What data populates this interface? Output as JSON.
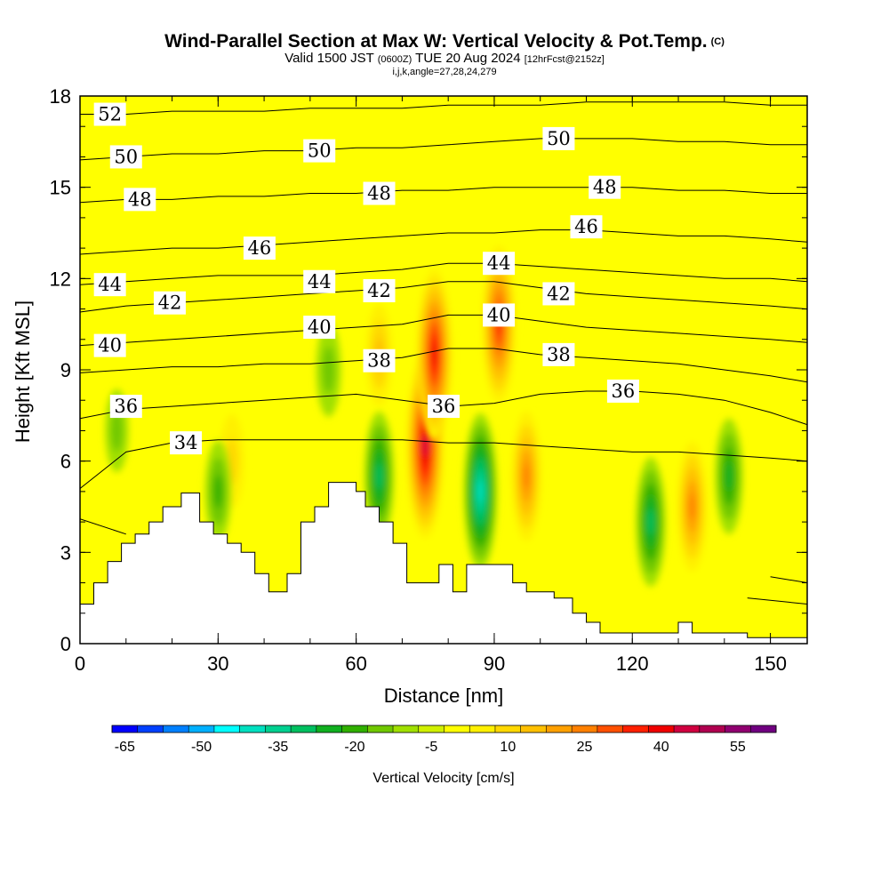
{
  "header": {
    "title": "Wind-Parallel Section at Max W: Vertical Velocity & Pot.Temp.",
    "title_tag": "(C)",
    "valid_prefix": "Valid 1500 JST",
    "valid_utc": "(0600Z)",
    "valid_date": "TUE 20 Aug 2024",
    "forecast": "[12hrFcst@2152z]",
    "grid_info": "i,j,k,angle=27,28,24,279"
  },
  "chart_data": {
    "type": "heatmap",
    "xlabel": "Distance [nm]",
    "ylabel": "Height [Kft MSL]",
    "xlim": [
      0,
      158
    ],
    "ylim": [
      0,
      18
    ],
    "x_ticks": [
      0,
      30,
      60,
      90,
      120,
      150
    ],
    "y_ticks": [
      0,
      3,
      6,
      9,
      12,
      15,
      18
    ],
    "colorbar": {
      "label": "Vertical Velocity [cm/s]",
      "tick_labels": [
        "-65",
        "-50",
        "-35",
        "-20",
        "-5",
        "10",
        "25",
        "40",
        "55"
      ],
      "levels_start": -65,
      "level_step": 5,
      "colors": [
        "#0000ff",
        "#0040ff",
        "#0080ff",
        "#00b0ff",
        "#00ffff",
        "#00e0c0",
        "#00d090",
        "#00c060",
        "#10b020",
        "#30b000",
        "#70c800",
        "#a0e000",
        "#d0f000",
        "#ffff00",
        "#fff000",
        "#ffd800",
        "#ffc000",
        "#ffa000",
        "#ff8000",
        "#ff5000",
        "#ff2000",
        "#f00000",
        "#d00040",
        "#b00050",
        "#900070",
        "#700080"
      ]
    },
    "background_color": "#ffff00",
    "updrafts_cm_s": [
      {
        "x": 75,
        "z": 6.5,
        "w": 45
      },
      {
        "x": 77,
        "z": 9.5,
        "w": 40
      },
      {
        "x": 91,
        "z": 10.5,
        "w": 35
      },
      {
        "x": 97,
        "z": 5.5,
        "w": 25
      },
      {
        "x": 133,
        "z": 4.5,
        "w": 25
      },
      {
        "x": 65,
        "z": 9.5,
        "w": 15
      },
      {
        "x": 33,
        "z": 6,
        "w": 12
      }
    ],
    "downdrafts_cm_s": [
      {
        "x": 87,
        "z": 5,
        "w": -35
      },
      {
        "x": 65,
        "z": 5.5,
        "w": -25
      },
      {
        "x": 124,
        "z": 4,
        "w": -25
      },
      {
        "x": 141,
        "z": 5.5,
        "w": -20
      },
      {
        "x": 30,
        "z": 5,
        "w": -15
      },
      {
        "x": 54,
        "z": 9,
        "w": -12
      },
      {
        "x": 8,
        "z": 7,
        "w": -8
      }
    ],
    "isentrope_labels": [
      {
        "value": "52",
        "x": 6.5,
        "z": 17.4
      },
      {
        "value": "50",
        "x": 10,
        "z": 16
      },
      {
        "value": "50",
        "x": 52,
        "z": 16.2
      },
      {
        "value": "50",
        "x": 104,
        "z": 16.6
      },
      {
        "value": "48",
        "x": 13,
        "z": 14.6
      },
      {
        "value": "48",
        "x": 65,
        "z": 14.8
      },
      {
        "value": "48",
        "x": 114,
        "z": 15
      },
      {
        "value": "46",
        "x": 39,
        "z": 13
      },
      {
        "value": "46",
        "x": 110,
        "z": 13.7
      },
      {
        "value": "44",
        "x": 6.5,
        "z": 11.8
      },
      {
        "value": "44",
        "x": 52,
        "z": 11.9
      },
      {
        "value": "44",
        "x": 91,
        "z": 12.5
      },
      {
        "value": "42",
        "x": 19.5,
        "z": 11.2
      },
      {
        "value": "42",
        "x": 65,
        "z": 11.6
      },
      {
        "value": "42",
        "x": 104,
        "z": 11.5
      },
      {
        "value": "40",
        "x": 6.5,
        "z": 9.8
      },
      {
        "value": "40",
        "x": 52,
        "z": 10.4
      },
      {
        "value": "40",
        "x": 91,
        "z": 10.8
      },
      {
        "value": "38",
        "x": 65,
        "z": 9.3
      },
      {
        "value": "38",
        "x": 104,
        "z": 9.5
      },
      {
        "value": "36",
        "x": 10,
        "z": 7.8
      },
      {
        "value": "36",
        "x": 79,
        "z": 7.8
      },
      {
        "value": "36",
        "x": 118,
        "z": 8.3
      },
      {
        "value": "34",
        "x": 23,
        "z": 6.6
      }
    ],
    "isentropes": [
      {
        "value": 34,
        "z": [
          5.1,
          6.3,
          6.6,
          6.7,
          6.7,
          6.7,
          6.7,
          6.7,
          6.6,
          6.6,
          6.5,
          6.4,
          6.3,
          6.3,
          6.2,
          6.1,
          6.0
        ]
      },
      {
        "value": 36,
        "z": [
          7.4,
          7.7,
          7.8,
          7.9,
          8.0,
          8.1,
          8.2,
          8.0,
          7.8,
          7.9,
          8.2,
          8.3,
          8.3,
          8.2,
          8.0,
          7.6,
          7.2
        ]
      },
      {
        "value": 38,
        "z": [
          8.9,
          9.0,
          9.1,
          9.1,
          9.2,
          9.2,
          9.3,
          9.4,
          9.7,
          9.7,
          9.5,
          9.4,
          9.3,
          9.2,
          9.0,
          8.8,
          8.6
        ]
      },
      {
        "value": 40,
        "z": [
          9.8,
          9.9,
          10.0,
          10.1,
          10.2,
          10.3,
          10.4,
          10.5,
          10.8,
          10.8,
          10.6,
          10.4,
          10.3,
          10.2,
          10.1,
          10.0,
          9.9
        ]
      },
      {
        "value": 42,
        "z": [
          10.9,
          11.1,
          11.2,
          11.3,
          11.4,
          11.5,
          11.6,
          11.7,
          11.9,
          11.9,
          11.7,
          11.5,
          11.4,
          11.3,
          11.2,
          11.1,
          11.0
        ]
      },
      {
        "value": 44,
        "z": [
          11.8,
          11.9,
          12.0,
          12.1,
          12.1,
          12.1,
          12.2,
          12.3,
          12.5,
          12.5,
          12.4,
          12.3,
          12.2,
          12.1,
          12.0,
          12.0,
          11.9
        ]
      },
      {
        "value": 46,
        "z": [
          12.8,
          12.9,
          13.0,
          13.0,
          13.1,
          13.2,
          13.3,
          13.4,
          13.5,
          13.5,
          13.6,
          13.6,
          13.5,
          13.4,
          13.4,
          13.3,
          13.2
        ]
      },
      {
        "value": 48,
        "z": [
          14.5,
          14.6,
          14.6,
          14.7,
          14.7,
          14.8,
          14.8,
          14.9,
          14.9,
          15.0,
          15.0,
          15.0,
          15.0,
          14.9,
          14.9,
          14.8,
          14.8
        ]
      },
      {
        "value": 50,
        "z": [
          15.9,
          16.0,
          16.1,
          16.1,
          16.2,
          16.2,
          16.3,
          16.3,
          16.4,
          16.5,
          16.6,
          16.6,
          16.6,
          16.5,
          16.5,
          16.4,
          16.4
        ]
      },
      {
        "value": 52,
        "z": [
          17.4,
          17.4,
          17.5,
          17.5,
          17.5,
          17.6,
          17.6,
          17.6,
          17.7,
          17.7,
          17.7,
          17.8,
          17.8,
          17.8,
          17.8,
          17.7,
          17.7
        ]
      }
    ],
    "isentrope_x": [
      0,
      10,
      20,
      30,
      40,
      50,
      60,
      70,
      80,
      90,
      100,
      110,
      120,
      130,
      140,
      150,
      158
    ],
    "terrain": {
      "x": [
        0,
        3,
        3,
        6,
        6,
        9,
        9,
        12,
        12,
        15,
        15,
        18,
        18,
        22,
        22,
        26,
        26,
        29,
        29,
        32,
        32,
        35,
        35,
        38,
        38,
        41,
        41,
        45,
        45,
        48,
        48,
        51,
        51,
        54,
        54,
        60,
        60,
        62,
        62,
        65,
        65,
        68,
        68,
        71,
        71,
        75,
        75,
        78,
        78,
        81,
        81,
        84,
        84,
        87,
        87,
        94,
        94,
        97,
        97,
        103,
        103,
        107,
        107,
        110,
        110,
        113,
        113,
        117,
        117,
        130,
        130,
        133,
        133,
        142,
        142,
        145,
        145,
        151,
        151,
        158
      ],
      "z": [
        1.3,
        1.3,
        2.0,
        2.0,
        2.7,
        2.7,
        3.3,
        3.3,
        3.6,
        3.6,
        4.0,
        4.0,
        4.5,
        4.5,
        4.95,
        4.95,
        4.0,
        4.0,
        3.6,
        3.6,
        3.3,
        3.3,
        3.0,
        3.0,
        2.3,
        2.3,
        1.7,
        1.7,
        2.3,
        2.3,
        4.0,
        4.0,
        4.5,
        4.5,
        5.3,
        5.3,
        5.0,
        5.0,
        4.5,
        4.5,
        4.0,
        4.0,
        3.3,
        3.3,
        2.0,
        2.0,
        2.0,
        2.0,
        2.6,
        2.6,
        1.7,
        1.7,
        2.6,
        2.6,
        2.6,
        2.6,
        2.0,
        2.0,
        1.7,
        1.7,
        1.5,
        1.5,
        1.0,
        1.0,
        0.7,
        0.7,
        0.35,
        0.35,
        0.35,
        0.35,
        0.7,
        0.7,
        0.35,
        0.35,
        0.35,
        0.35,
        0.2,
        0.2,
        0.2,
        0.2
      ]
    }
  }
}
